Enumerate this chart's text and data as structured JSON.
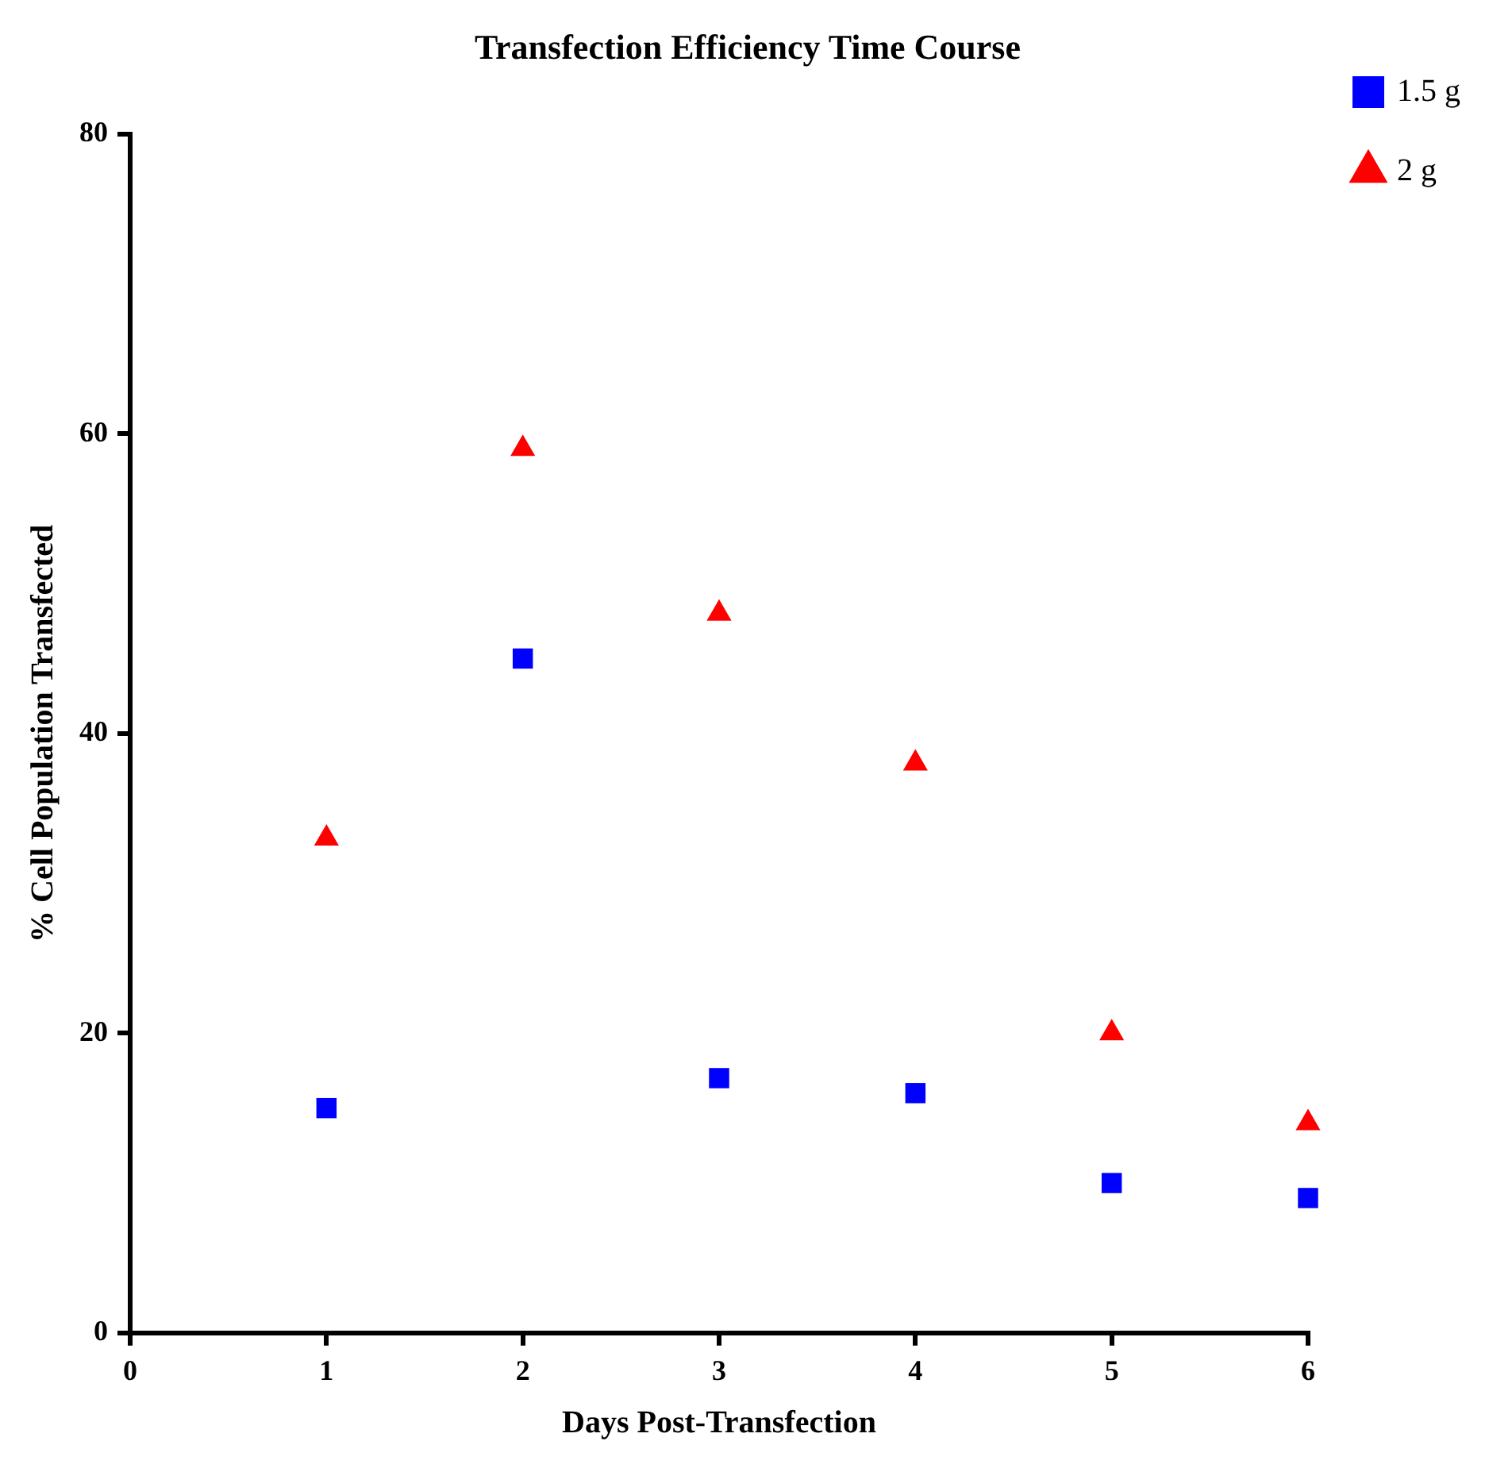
{
  "chart_data": {
    "type": "scatter",
    "title": "Transfection Efficiency Time Course",
    "xlabel": "Days Post-Transfection",
    "ylabel": "% Cell Population Transfected",
    "xlim": [
      0,
      6
    ],
    "xticks": [
      0,
      1,
      2,
      3,
      4,
      5,
      6
    ],
    "ylim": [
      0,
      80
    ],
    "yticks": [
      0,
      20,
      40,
      60,
      80
    ],
    "grid": false,
    "legend": "top right",
    "series": [
      {
        "name": "1.5 g",
        "color": "#0000ff",
        "marker": "square",
        "x": [
          1,
          2,
          3,
          4,
          5,
          6
        ],
        "values": [
          15,
          45,
          17,
          16,
          10,
          9
        ]
      },
      {
        "name": "2 g",
        "color": "#ff0000",
        "marker": "triangle",
        "x": [
          1,
          2,
          3,
          4,
          5,
          6
        ],
        "values": [
          33,
          59,
          48,
          38,
          20,
          14
        ]
      }
    ]
  }
}
